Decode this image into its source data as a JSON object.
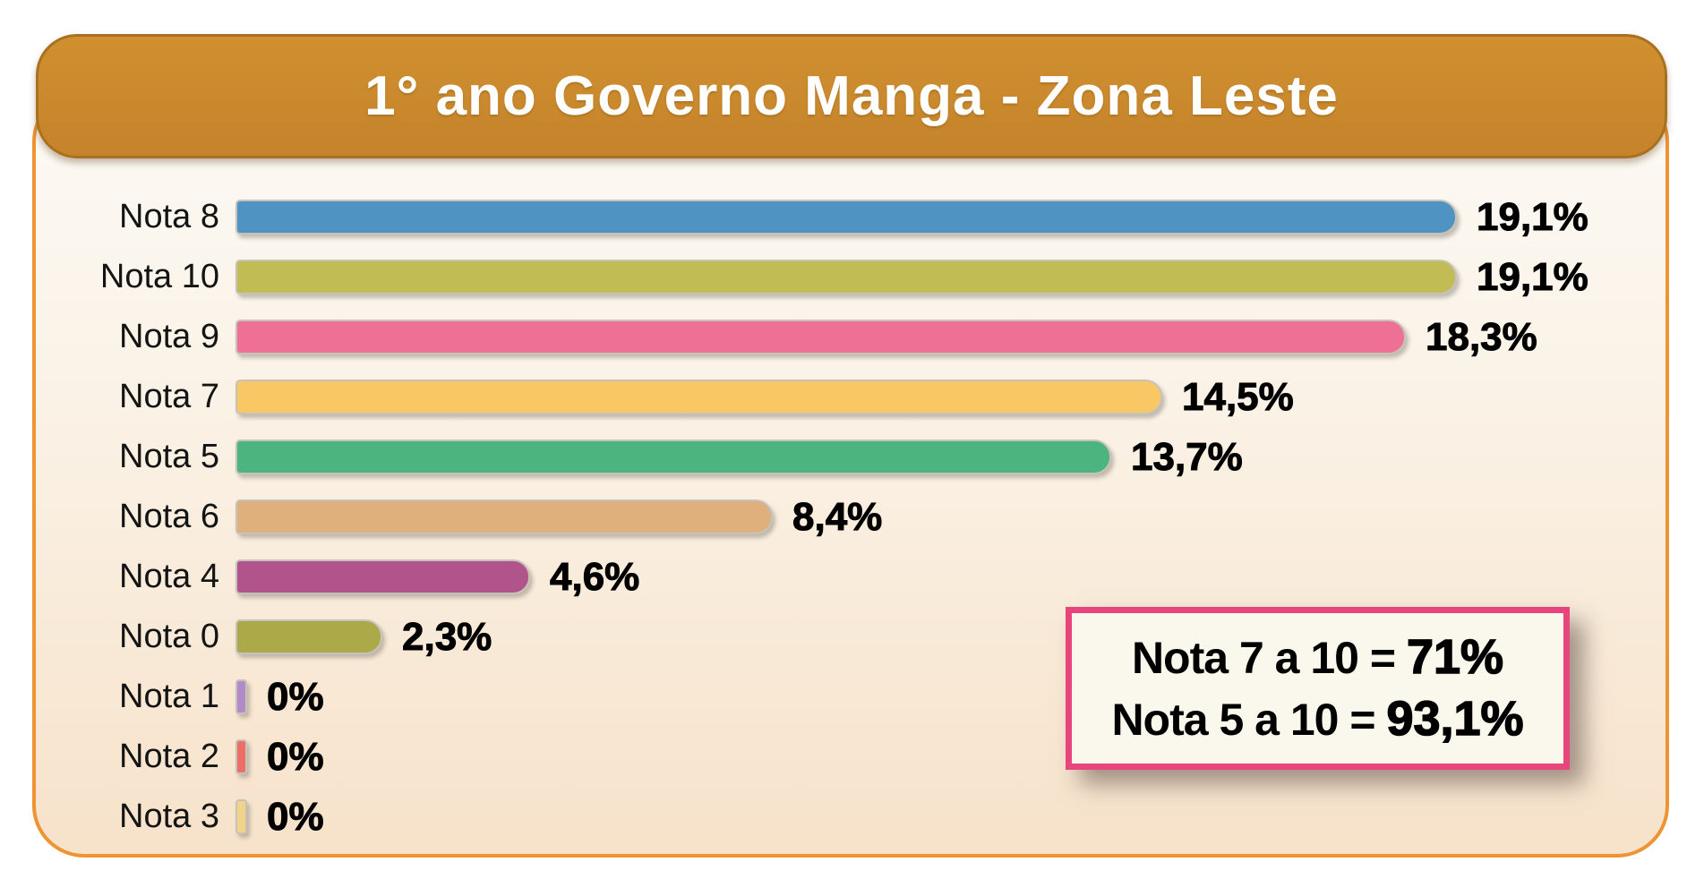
{
  "title": "1° ano Governo Manga - Zona Leste",
  "chart_data": {
    "type": "bar",
    "orientation": "horizontal",
    "title": "1° ano Governo Manga - Zona Leste",
    "categories": [
      "Nota 8",
      "Nota 10",
      "Nota 9",
      "Nota 7",
      "Nota 5",
      "Nota 6",
      "Nota 4",
      "Nota 0",
      "Nota 1",
      "Nota 2",
      "Nota 3"
    ],
    "values": [
      19.1,
      19.1,
      18.3,
      14.5,
      13.7,
      8.4,
      4.6,
      2.3,
      0,
      0,
      0
    ],
    "value_labels": [
      "19,1%",
      "19,1%",
      "18,3%",
      "14,5%",
      "13,7%",
      "8,4%",
      "4,6%",
      "2,3%",
      "0%",
      "0%",
      "0%"
    ],
    "bar_colors": [
      "#4E93C1",
      "#C2BC55",
      "#EE7195",
      "#F9C865",
      "#4CB47F",
      "#DFAF7C",
      "#B2548C",
      "#ACAA48",
      "#B18BC8",
      "#EC6E66",
      "#F2D488"
    ],
    "xlabel": "",
    "ylabel": "",
    "xlim": [
      0,
      20
    ],
    "grid": false,
    "legend": "none",
    "annotations": [
      "Nota 7 a 10 = 71%",
      "Nota 5 a 10 = 93,1%"
    ]
  },
  "summary_box": {
    "lines": [
      {
        "label": "Nota 7 a 10 = ",
        "value": "71%"
      },
      {
        "label": "Nota 5 a 10 = ",
        "value": "93,1%"
      }
    ],
    "border_color": "#E8457D",
    "background": "#FAF7EC"
  },
  "colors": {
    "banner": "#CB8A30",
    "banner_border": "#A8701F",
    "panel_border": "#EE9434",
    "panel_bg_top": "#FCFAF5",
    "panel_bg_bottom": "#F7E2CA",
    "bar_outline": "#C6C3BC",
    "text": "#111111"
  }
}
